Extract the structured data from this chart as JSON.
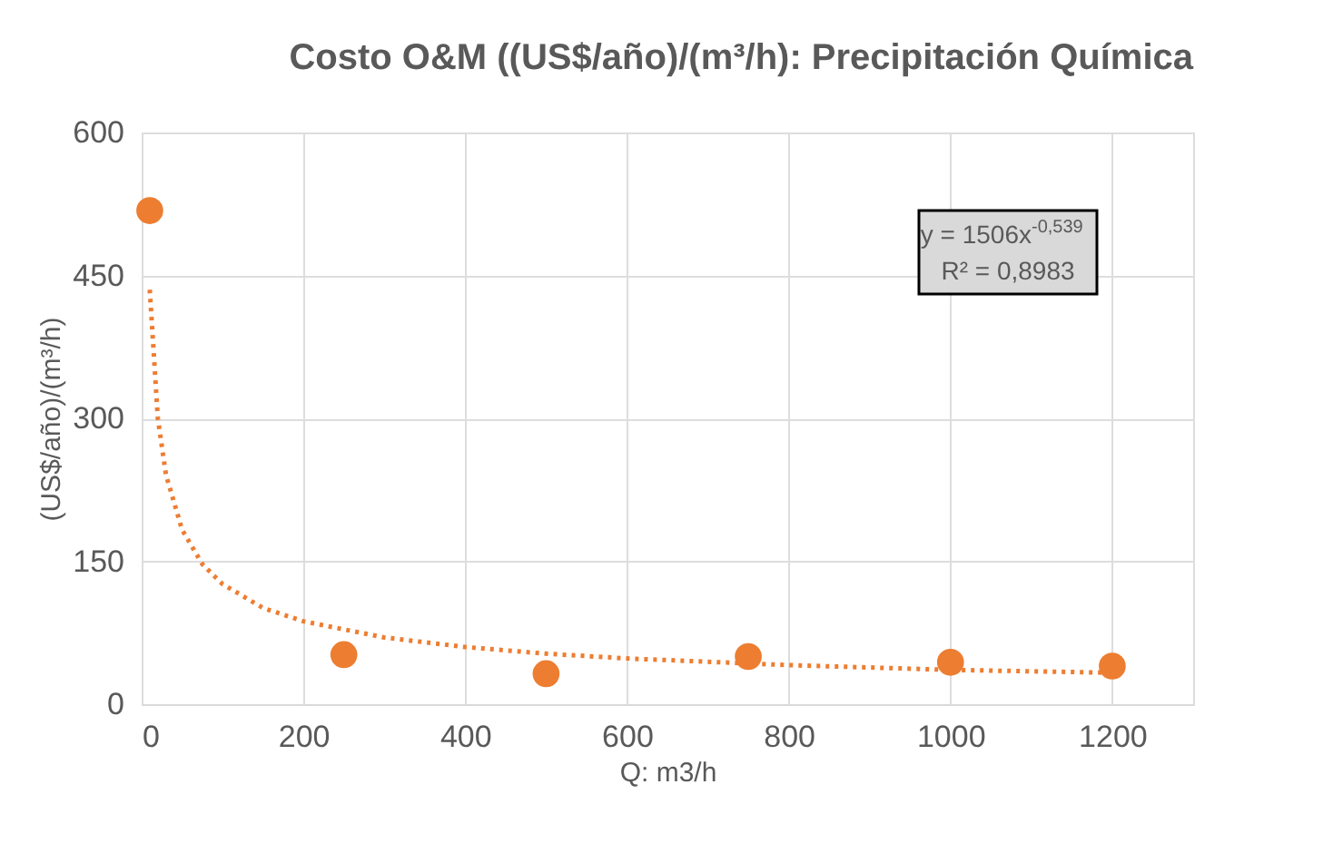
{
  "chart_data": {
    "type": "scatter",
    "title": "Costo O&M ((US$/año)/(m³/h):  Precipitación Química",
    "xlabel": "Q: m3/h",
    "ylabel": "(US$/año)/(m³/h)",
    "xlim": [
      0,
      1300
    ],
    "xticks": [
      0,
      200,
      400,
      600,
      800,
      1000,
      1200
    ],
    "ylim": [
      0,
      600
    ],
    "yticks": [
      0,
      150,
      300,
      450,
      600
    ],
    "grid": true,
    "series": [
      {
        "marker": "circle",
        "color": "#ed7d31",
        "x": [
          10,
          250,
          500,
          750,
          1000,
          1200
        ],
        "values": [
          518,
          52,
          32,
          50,
          44,
          40
        ]
      },
      {
        "type": "line",
        "line_style": "dotted",
        "color": "#ed7d31",
        "x": [
          10,
          20,
          30,
          50,
          75,
          100,
          150,
          200,
          300,
          400,
          500,
          600,
          800,
          1000,
          1200
        ],
        "values": [
          435,
          300,
          241,
          183,
          147,
          126,
          101,
          87,
          70,
          60,
          53,
          48,
          41,
          36,
          33
        ]
      }
    ],
    "annotations": [
      "y = 1506x$^{-0,539}$",
      "R² = 0,8983"
    ]
  }
}
